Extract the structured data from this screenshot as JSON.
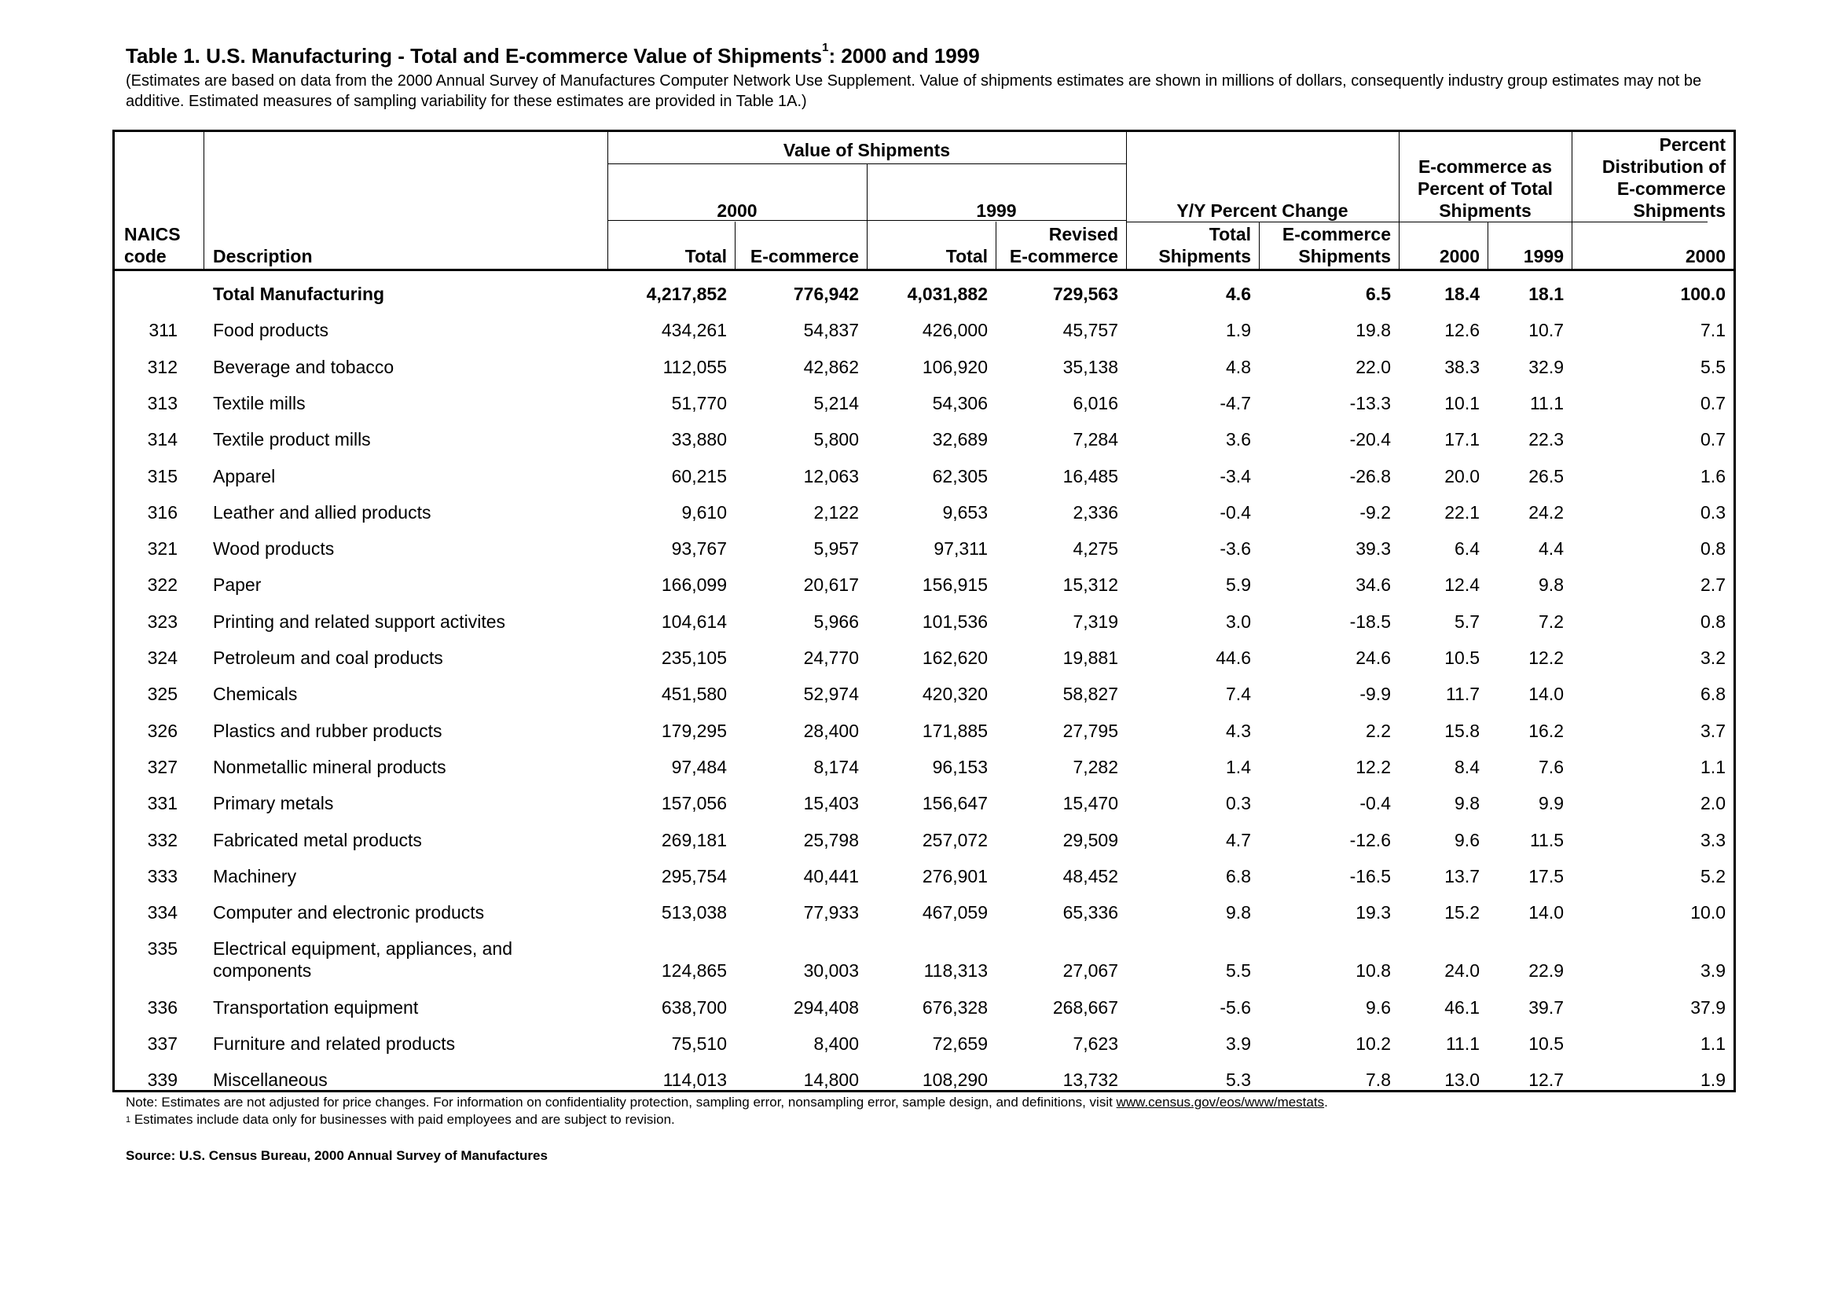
{
  "title": {
    "main": "Table 1.  U.S. Manufacturing - Total and E-commerce Value of Shipments",
    "sup": "1",
    "tail": ": 2000 and 1999"
  },
  "subtitle": "(Estimates are based on data from the 2000 Annual Survey of Manufactures Computer Network Use Supplement.  Value of shipments estimates are shown in millions of dollars, consequently industry group estimates may not be additive.  Estimated measures of sampling variability for these estimates are provided in Table 1A.)",
  "header": {
    "value_of_shipments": "Value of Shipments",
    "year_2000": "2000",
    "year_1999": "1999",
    "yy_change": "Y/Y Percent Change",
    "ecom_pct_l1": "E-commerce as",
    "ecom_pct_l2": "Percent of Total",
    "ecom_pct_l3": "Shipments",
    "pct_dist_l1": "Percent",
    "pct_dist_l2": "Distribution of",
    "pct_dist_l3": "E-commerce",
    "pct_dist_l4": "Shipments",
    "naics_l1": "NAICS",
    "naics_l2": "code",
    "description": "Description",
    "total": "Total",
    "ecommerce": "E-commerce",
    "revised": "Revised",
    "total_l1": "Total",
    "shipments": "Shipments",
    "ecom_l1": "E-commerce",
    "ecom_ship": "Shipments",
    "col_2000": "2000",
    "col_1999": "1999",
    "dist_2000": "2000"
  },
  "rows": [
    {
      "code": "",
      "desc": "Total Manufacturing",
      "desc2": "",
      "t2000": "4,217,852",
      "e2000": "776,942",
      "t1999": "4,031,882",
      "e1999": "729,563",
      "yyt": "4.6",
      "yye": "6.5",
      "p2000": "18.4",
      "p1999": "18.1",
      "dist": "100.0"
    },
    {
      "code": "311",
      "desc": "Food products",
      "desc2": "",
      "t2000": "434,261",
      "e2000": "54,837",
      "t1999": "426,000",
      "e1999": "45,757",
      "yyt": "1.9",
      "yye": "19.8",
      "p2000": "12.6",
      "p1999": "10.7",
      "dist": "7.1"
    },
    {
      "code": "312",
      "desc": "Beverage and tobacco",
      "desc2": "",
      "t2000": "112,055",
      "e2000": "42,862",
      "t1999": "106,920",
      "e1999": "35,138",
      "yyt": "4.8",
      "yye": "22.0",
      "p2000": "38.3",
      "p1999": "32.9",
      "dist": "5.5"
    },
    {
      "code": "313",
      "desc": "Textile mills",
      "desc2": "",
      "t2000": "51,770",
      "e2000": "5,214",
      "t1999": "54,306",
      "e1999": "6,016",
      "yyt": "-4.7",
      "yye": "-13.3",
      "p2000": "10.1",
      "p1999": "11.1",
      "dist": "0.7"
    },
    {
      "code": "314",
      "desc": "Textile product mills",
      "desc2": "",
      "t2000": "33,880",
      "e2000": "5,800",
      "t1999": "32,689",
      "e1999": "7,284",
      "yyt": "3.6",
      "yye": "-20.4",
      "p2000": "17.1",
      "p1999": "22.3",
      "dist": "0.7"
    },
    {
      "code": "315",
      "desc": "Apparel",
      "desc2": "",
      "t2000": "60,215",
      "e2000": "12,063",
      "t1999": "62,305",
      "e1999": "16,485",
      "yyt": "-3.4",
      "yye": "-26.8",
      "p2000": "20.0",
      "p1999": "26.5",
      "dist": "1.6"
    },
    {
      "code": "316",
      "desc": "Leather and allied products",
      "desc2": "",
      "t2000": "9,610",
      "e2000": "2,122",
      "t1999": "9,653",
      "e1999": "2,336",
      "yyt": "-0.4",
      "yye": "-9.2",
      "p2000": "22.1",
      "p1999": "24.2",
      "dist": "0.3"
    },
    {
      "code": "321",
      "desc": "Wood products",
      "desc2": "",
      "t2000": "93,767",
      "e2000": "5,957",
      "t1999": "97,311",
      "e1999": "4,275",
      "yyt": "-3.6",
      "yye": "39.3",
      "p2000": "6.4",
      "p1999": "4.4",
      "dist": "0.8"
    },
    {
      "code": "322",
      "desc": "Paper",
      "desc2": "",
      "t2000": "166,099",
      "e2000": "20,617",
      "t1999": "156,915",
      "e1999": "15,312",
      "yyt": "5.9",
      "yye": "34.6",
      "p2000": "12.4",
      "p1999": "9.8",
      "dist": "2.7"
    },
    {
      "code": "323",
      "desc": "Printing and related support activites",
      "desc2": "",
      "t2000": "104,614",
      "e2000": "5,966",
      "t1999": "101,536",
      "e1999": "7,319",
      "yyt": "3.0",
      "yye": "-18.5",
      "p2000": "5.7",
      "p1999": "7.2",
      "dist": "0.8"
    },
    {
      "code": "324",
      "desc": "Petroleum and coal products",
      "desc2": "",
      "t2000": "235,105",
      "e2000": "24,770",
      "t1999": "162,620",
      "e1999": "19,881",
      "yyt": "44.6",
      "yye": "24.6",
      "p2000": "10.5",
      "p1999": "12.2",
      "dist": "3.2"
    },
    {
      "code": "325",
      "desc": "Chemicals",
      "desc2": "",
      "t2000": "451,580",
      "e2000": "52,974",
      "t1999": "420,320",
      "e1999": "58,827",
      "yyt": "7.4",
      "yye": "-9.9",
      "p2000": "11.7",
      "p1999": "14.0",
      "dist": "6.8"
    },
    {
      "code": "326",
      "desc": "Plastics and rubber products",
      "desc2": "",
      "t2000": "179,295",
      "e2000": "28,400",
      "t1999": "171,885",
      "e1999": "27,795",
      "yyt": "4.3",
      "yye": "2.2",
      "p2000": "15.8",
      "p1999": "16.2",
      "dist": "3.7"
    },
    {
      "code": "327",
      "desc": "Nonmetallic mineral products",
      "desc2": "",
      "t2000": "97,484",
      "e2000": "8,174",
      "t1999": "96,153",
      "e1999": "7,282",
      "yyt": "1.4",
      "yye": "12.2",
      "p2000": "8.4",
      "p1999": "7.6",
      "dist": "1.1"
    },
    {
      "code": "331",
      "desc": "Primary metals",
      "desc2": "",
      "t2000": "157,056",
      "e2000": "15,403",
      "t1999": "156,647",
      "e1999": "15,470",
      "yyt": "0.3",
      "yye": "-0.4",
      "p2000": "9.8",
      "p1999": "9.9",
      "dist": "2.0"
    },
    {
      "code": "332",
      "desc": "Fabricated metal products",
      "desc2": "",
      "t2000": "269,181",
      "e2000": "25,798",
      "t1999": "257,072",
      "e1999": "29,509",
      "yyt": "4.7",
      "yye": "-12.6",
      "p2000": "9.6",
      "p1999": "11.5",
      "dist": "3.3"
    },
    {
      "code": "333",
      "desc": "Machinery",
      "desc2": "",
      "t2000": "295,754",
      "e2000": "40,441",
      "t1999": "276,901",
      "e1999": "48,452",
      "yyt": "6.8",
      "yye": "-16.5",
      "p2000": "13.7",
      "p1999": "17.5",
      "dist": "5.2"
    },
    {
      "code": "334",
      "desc": "Computer and electronic products",
      "desc2": "",
      "t2000": "513,038",
      "e2000": "77,933",
      "t1999": "467,059",
      "e1999": "65,336",
      "yyt": "9.8",
      "yye": "19.3",
      "p2000": "15.2",
      "p1999": "14.0",
      "dist": "10.0"
    },
    {
      "code": "335",
      "desc": "Electrical equipment, appliances, and",
      "desc2": "components",
      "t2000": "124,865",
      "e2000": "30,003",
      "t1999": "118,313",
      "e1999": "27,067",
      "yyt": "5.5",
      "yye": "10.8",
      "p2000": "24.0",
      "p1999": "22.9",
      "dist": "3.9"
    },
    {
      "code": "336",
      "desc": "Transportation equipment",
      "desc2": "",
      "t2000": "638,700",
      "e2000": "294,408",
      "t1999": "676,328",
      "e1999": "268,667",
      "yyt": "-5.6",
      "yye": "9.6",
      "p2000": "46.1",
      "p1999": "39.7",
      "dist": "37.9"
    },
    {
      "code": "337",
      "desc": "Furniture and related products",
      "desc2": "",
      "t2000": "75,510",
      "e2000": "8,400",
      "t1999": "72,659",
      "e1999": "7,623",
      "yyt": "3.9",
      "yye": "10.2",
      "p2000": "11.1",
      "p1999": "10.5",
      "dist": "1.1"
    },
    {
      "code": "339",
      "desc": "Miscellaneous",
      "desc2": "",
      "t2000": "114,013",
      "e2000": "14,800",
      "t1999": "108,290",
      "e1999": "13,732",
      "yyt": "5.3",
      "yye": "7.8",
      "p2000": "13.0",
      "p1999": "12.7",
      "dist": "1.9"
    }
  ],
  "notes": {
    "note_text": "Note:  Estimates are not adjusted for price changes.  For information on confidentiality protection, sampling error, nonsampling error, sample design, and definitions, visit ",
    "note_link": "www.census.gov/eos/www/mestats",
    "note_end": ".",
    "footnote_sup": "1",
    "footnote_text": " Estimates include data only for businesses with paid employees and are subject to revision."
  },
  "source": "Source:  U.S. Census Bureau, 2000 Annual Survey of Manufactures"
}
